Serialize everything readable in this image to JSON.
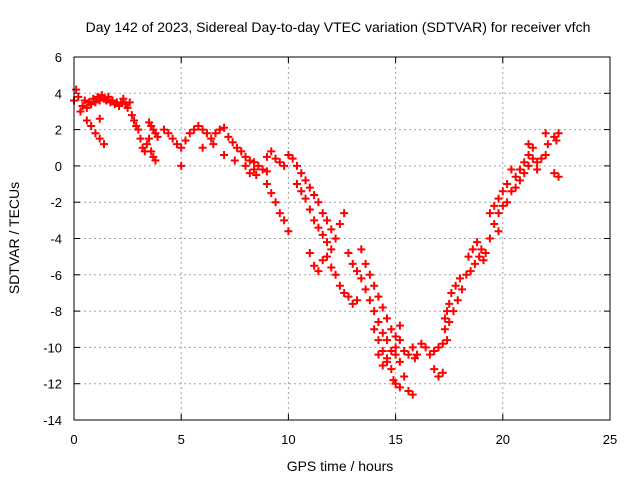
{
  "chart_data": {
    "type": "scatter",
    "title": "Day 142 of 2023, Sidereal Day-to-day VTEC variation (SDTVAR) for receiver vfch",
    "xlabel": "GPS time / hours",
    "ylabel": "SDTVAR / TECUs",
    "xlim": [
      0,
      25
    ],
    "ylim": [
      -14,
      6
    ],
    "xticks": [
      0,
      5,
      10,
      15,
      20,
      25
    ],
    "yticks": [
      -14,
      -12,
      -10,
      -8,
      -6,
      -4,
      -2,
      0,
      2,
      4,
      6
    ],
    "grid": true,
    "marker": "plus",
    "colors": {
      "series": "#ff0000",
      "grid": "#a0a0a0",
      "axes": "#000000"
    },
    "series": [
      {
        "name": "SDTVAR",
        "points": [
          [
            0.0,
            3.6
          ],
          [
            0.1,
            4.2
          ],
          [
            0.2,
            3.8
          ],
          [
            0.3,
            3.0
          ],
          [
            0.4,
            3.3
          ],
          [
            0.5,
            3.6
          ],
          [
            0.6,
            3.2
          ],
          [
            0.7,
            3.5
          ],
          [
            0.8,
            3.4
          ],
          [
            0.9,
            3.7
          ],
          [
            1.0,
            3.5
          ],
          [
            1.1,
            3.8
          ],
          [
            1.2,
            3.6
          ],
          [
            1.3,
            3.9
          ],
          [
            1.4,
            3.7
          ],
          [
            1.5,
            3.6
          ],
          [
            1.6,
            3.8
          ],
          [
            1.7,
            3.5
          ],
          [
            1.8,
            3.6
          ],
          [
            1.9,
            3.4
          ],
          [
            2.0,
            3.5
          ],
          [
            2.1,
            3.3
          ],
          [
            2.2,
            3.5
          ],
          [
            2.3,
            3.7
          ],
          [
            2.4,
            3.4
          ],
          [
            2.5,
            3.2
          ],
          [
            2.6,
            3.5
          ],
          [
            2.7,
            2.8
          ],
          [
            2.8,
            2.5
          ],
          [
            2.9,
            2.2
          ],
          [
            3.0,
            2.0
          ],
          [
            3.1,
            1.5
          ],
          [
            3.2,
            1.0
          ],
          [
            3.3,
            0.8
          ],
          [
            0.6,
            2.5
          ],
          [
            0.8,
            2.2
          ],
          [
            1.0,
            1.8
          ],
          [
            1.2,
            1.5
          ],
          [
            1.4,
            1.2
          ],
          [
            1.2,
            2.6
          ],
          [
            3.5,
            2.4
          ],
          [
            3.6,
            2.2
          ],
          [
            3.7,
            2.0
          ],
          [
            3.8,
            1.8
          ],
          [
            3.9,
            1.6
          ],
          [
            3.6,
            0.8
          ],
          [
            3.7,
            0.5
          ],
          [
            3.8,
            0.3
          ],
          [
            3.4,
            1.2
          ],
          [
            3.5,
            1.5
          ],
          [
            4.2,
            2.0
          ],
          [
            4.4,
            1.8
          ],
          [
            4.6,
            1.5
          ],
          [
            4.8,
            1.2
          ],
          [
            5.0,
            1.0
          ],
          [
            5.2,
            1.4
          ],
          [
            5.4,
            1.8
          ],
          [
            5.6,
            2.0
          ],
          [
            5.8,
            2.2
          ],
          [
            6.0,
            2.0
          ],
          [
            6.2,
            1.8
          ],
          [
            6.4,
            1.5
          ],
          [
            6.6,
            1.8
          ],
          [
            6.8,
            2.0
          ],
          [
            7.0,
            2.1
          ],
          [
            7.2,
            1.6
          ],
          [
            7.4,
            1.3
          ],
          [
            7.6,
            1.0
          ],
          [
            7.8,
            0.8
          ],
          [
            8.0,
            0.5
          ],
          [
            8.2,
            0.3
          ],
          [
            8.4,
            0.2
          ],
          [
            8.6,
            0.0
          ],
          [
            8.8,
            -0.2
          ],
          [
            9.0,
            -0.3
          ],
          [
            5.0,
            0.0
          ],
          [
            6.0,
            1.0
          ],
          [
            6.5,
            1.2
          ],
          [
            7.0,
            0.6
          ],
          [
            7.5,
            0.3
          ],
          [
            8.0,
            0.0
          ],
          [
            8.5,
            -0.5
          ],
          [
            9.0,
            -1.0
          ],
          [
            9.2,
            -1.5
          ],
          [
            9.4,
            -2.0
          ],
          [
            9.6,
            -2.6
          ],
          [
            9.8,
            -3.0
          ],
          [
            10.0,
            -3.6
          ],
          [
            8.2,
            -0.4
          ],
          [
            8.4,
            -0.2
          ],
          [
            9.0,
            0.5
          ],
          [
            9.2,
            0.8
          ],
          [
            9.4,
            0.4
          ],
          [
            9.6,
            0.2
          ],
          [
            9.8,
            0.0
          ],
          [
            10.0,
            0.6
          ],
          [
            10.2,
            0.4
          ],
          [
            10.4,
            0.0
          ],
          [
            10.6,
            -0.4
          ],
          [
            10.8,
            -0.8
          ],
          [
            11.0,
            -1.2
          ],
          [
            11.2,
            -1.6
          ],
          [
            11.4,
            -2.0
          ],
          [
            11.6,
            -2.6
          ],
          [
            11.8,
            -3.0
          ],
          [
            10.4,
            -1.0
          ],
          [
            10.6,
            -1.4
          ],
          [
            10.8,
            -1.8
          ],
          [
            11.0,
            -2.4
          ],
          [
            11.2,
            -3.0
          ],
          [
            11.4,
            -3.4
          ],
          [
            11.6,
            -3.8
          ],
          [
            11.8,
            -4.2
          ],
          [
            12.0,
            -4.6
          ],
          [
            12.2,
            -4.0
          ],
          [
            12.4,
            -3.2
          ],
          [
            12.6,
            -2.6
          ],
          [
            12.0,
            -3.5
          ],
          [
            11.0,
            -4.8
          ],
          [
            11.2,
            -5.5
          ],
          [
            11.4,
            -5.8
          ],
          [
            11.6,
            -5.2
          ],
          [
            11.8,
            -5.0
          ],
          [
            12.0,
            -5.6
          ],
          [
            12.2,
            -6.0
          ],
          [
            12.4,
            -6.6
          ],
          [
            12.6,
            -7.0
          ],
          [
            12.8,
            -7.2
          ],
          [
            13.0,
            -7.6
          ],
          [
            13.2,
            -7.4
          ],
          [
            12.8,
            -4.8
          ],
          [
            13.0,
            -5.4
          ],
          [
            13.2,
            -5.8
          ],
          [
            13.4,
            -6.2
          ],
          [
            13.6,
            -6.8
          ],
          [
            13.8,
            -7.4
          ],
          [
            14.0,
            -8.0
          ],
          [
            14.2,
            -8.6
          ],
          [
            14.4,
            -9.2
          ],
          [
            14.6,
            -9.6
          ],
          [
            13.4,
            -4.6
          ],
          [
            13.6,
            -5.4
          ],
          [
            13.8,
            -6.0
          ],
          [
            14.0,
            -6.6
          ],
          [
            14.2,
            -7.2
          ],
          [
            14.4,
            -7.8
          ],
          [
            14.6,
            -8.4
          ],
          [
            14.8,
            -9.0
          ],
          [
            15.0,
            -9.4
          ],
          [
            15.2,
            -8.8
          ],
          [
            14.0,
            -9.0
          ],
          [
            14.2,
            -9.6
          ],
          [
            14.4,
            -10.2
          ],
          [
            14.6,
            -10.6
          ],
          [
            14.8,
            -11.2
          ],
          [
            14.9,
            -11.8
          ],
          [
            15.0,
            -12.0
          ],
          [
            15.2,
            -12.2
          ],
          [
            15.4,
            -11.6
          ],
          [
            15.6,
            -12.4
          ],
          [
            15.8,
            -12.6
          ],
          [
            15.9,
            -10.6
          ],
          [
            15.6,
            -10.4
          ],
          [
            15.4,
            -10.2
          ],
          [
            15.2,
            -10.8
          ],
          [
            15.0,
            -10.4
          ],
          [
            14.8,
            -10.2
          ],
          [
            14.6,
            -10.8
          ],
          [
            14.4,
            -11.0
          ],
          [
            14.2,
            -10.4
          ],
          [
            15.8,
            -10.0
          ],
          [
            16.0,
            -10.4
          ],
          [
            16.2,
            -9.8
          ],
          [
            15.0,
            -10.0
          ],
          [
            15.2,
            -9.6
          ],
          [
            16.4,
            -10.0
          ],
          [
            16.6,
            -10.4
          ],
          [
            16.8,
            -10.2
          ],
          [
            17.0,
            -10.0
          ],
          [
            17.2,
            -9.8
          ],
          [
            17.4,
            -9.6
          ],
          [
            16.8,
            -11.2
          ],
          [
            17.0,
            -11.6
          ],
          [
            17.2,
            -11.4
          ],
          [
            17.3,
            -8.4
          ],
          [
            17.4,
            -8.0
          ],
          [
            17.5,
            -7.6
          ],
          [
            17.6,
            -7.0
          ],
          [
            17.8,
            -6.6
          ],
          [
            18.0,
            -6.2
          ],
          [
            17.3,
            -9.0
          ],
          [
            17.5,
            -8.6
          ],
          [
            17.7,
            -8.0
          ],
          [
            17.9,
            -7.4
          ],
          [
            18.1,
            -6.8
          ],
          [
            18.3,
            -6.0
          ],
          [
            18.5,
            -5.8
          ],
          [
            18.7,
            -5.4
          ],
          [
            18.9,
            -5.0
          ],
          [
            19.1,
            -5.2
          ],
          [
            18.4,
            -5.0
          ],
          [
            18.6,
            -4.6
          ],
          [
            18.8,
            -4.2
          ],
          [
            19.0,
            -4.6
          ],
          [
            19.2,
            -4.8
          ],
          [
            19.4,
            -4.0
          ],
          [
            19.6,
            -3.2
          ],
          [
            19.8,
            -2.6
          ],
          [
            20.0,
            -2.2
          ],
          [
            20.2,
            -2.0
          ],
          [
            19.4,
            -2.6
          ],
          [
            19.6,
            -2.2
          ],
          [
            19.8,
            -1.8
          ],
          [
            20.0,
            -1.4
          ],
          [
            20.2,
            -1.0
          ],
          [
            20.4,
            -1.4
          ],
          [
            20.6,
            -1.2
          ],
          [
            20.8,
            -0.8
          ],
          [
            21.0,
            -0.4
          ],
          [
            21.2,
            0.0
          ],
          [
            20.6,
            -0.6
          ],
          [
            20.8,
            -0.2
          ],
          [
            21.0,
            0.2
          ],
          [
            21.2,
            0.6
          ],
          [
            21.4,
            1.0
          ],
          [
            21.2,
            1.2
          ],
          [
            21.4,
            0.4
          ],
          [
            21.6,
            0.2
          ],
          [
            22.0,
            1.8
          ],
          [
            22.0,
            0.6
          ],
          [
            22.1,
            1.2
          ],
          [
            22.4,
            1.6
          ],
          [
            22.6,
            1.8
          ],
          [
            22.4,
            -0.4
          ],
          [
            22.6,
            -0.6
          ],
          [
            22.5,
            1.4
          ],
          [
            21.6,
            -0.2
          ],
          [
            21.8,
            0.4
          ],
          [
            20.4,
            -0.2
          ],
          [
            19.8,
            -3.6
          ]
        ]
      }
    ]
  }
}
